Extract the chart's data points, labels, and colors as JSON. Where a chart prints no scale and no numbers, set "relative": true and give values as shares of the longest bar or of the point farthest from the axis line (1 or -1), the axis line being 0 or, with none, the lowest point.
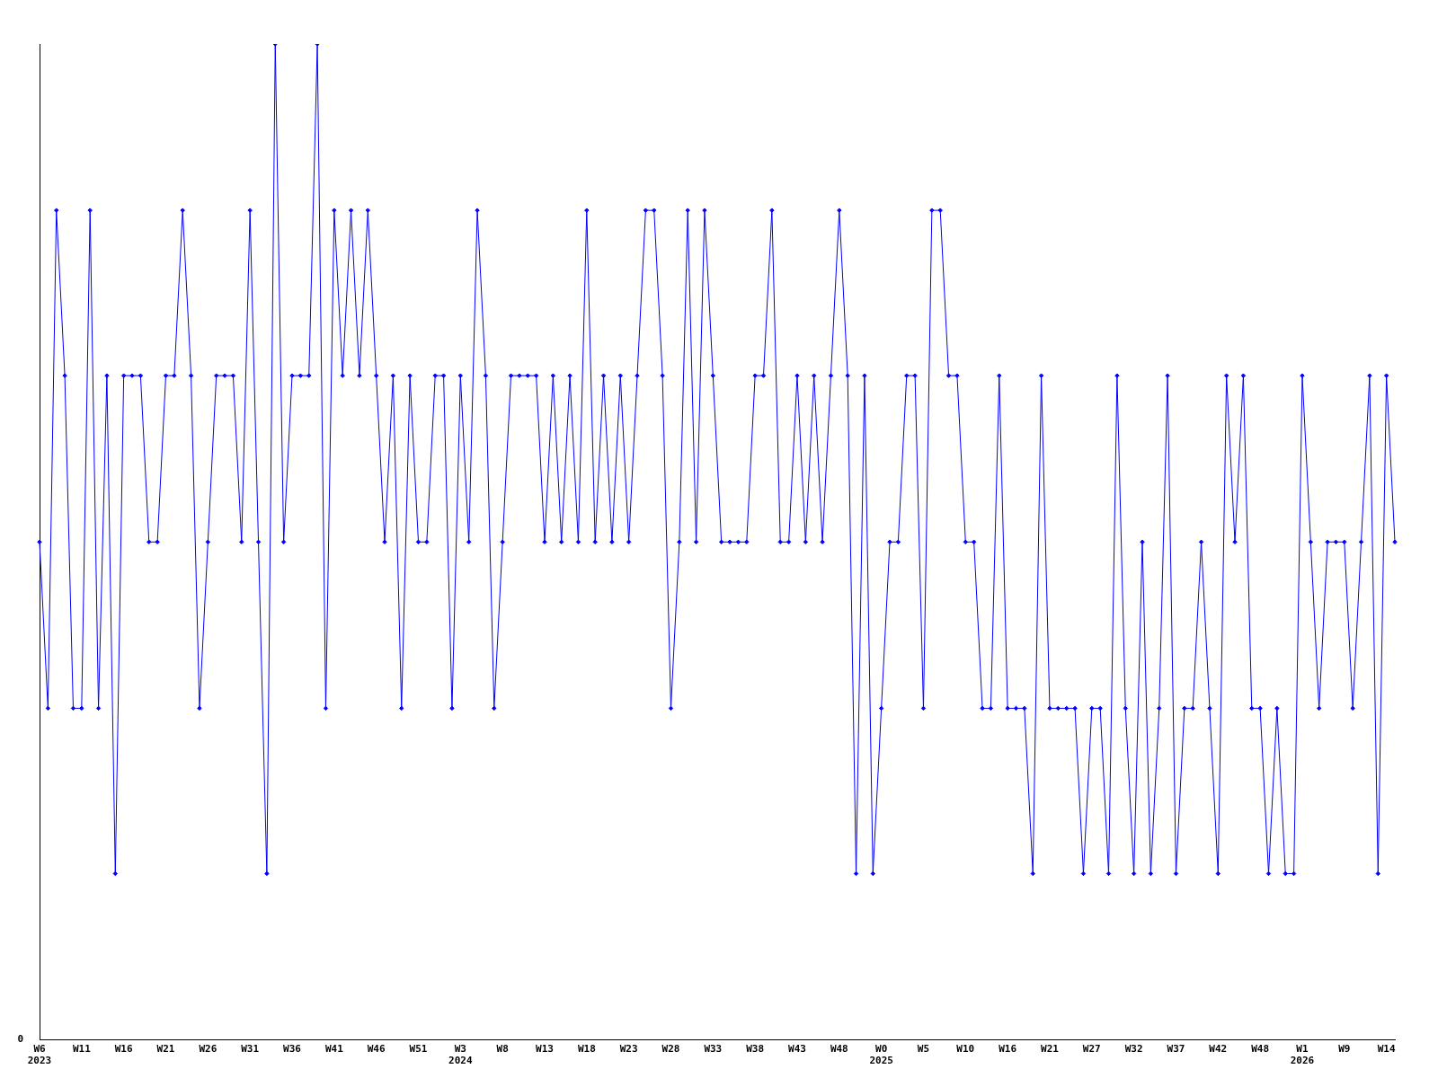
{
  "chart_data": {
    "type": "line",
    "relative": true,
    "marker": "diamond",
    "grid": false,
    "legend": false,
    "annotations": [
      "0"
    ],
    "categories": [
      "W6\n2023",
      null,
      null,
      null,
      null,
      "W11",
      null,
      null,
      null,
      null,
      "W16",
      null,
      null,
      null,
      null,
      "W21",
      null,
      null,
      null,
      null,
      "W26",
      null,
      null,
      null,
      null,
      "W31",
      null,
      null,
      null,
      null,
      "W36",
      null,
      null,
      null,
      null,
      "W41",
      null,
      null,
      null,
      null,
      "W46",
      null,
      null,
      null,
      null,
      "W51",
      null,
      null,
      null,
      null,
      "W3\n2024",
      null,
      null,
      null,
      null,
      "W8",
      null,
      null,
      null,
      null,
      "W13",
      null,
      null,
      null,
      null,
      "W18",
      null,
      null,
      null,
      null,
      "W23",
      null,
      null,
      null,
      null,
      "W28",
      null,
      null,
      null,
      null,
      "W33",
      null,
      null,
      null,
      null,
      "W38",
      null,
      null,
      null,
      null,
      "W43",
      null,
      null,
      null,
      null,
      "W48",
      null,
      null,
      null,
      null,
      "W0\n2025",
      null,
      null,
      null,
      null,
      "W5",
      null,
      null,
      null,
      null,
      "W10",
      null,
      null,
      null,
      null,
      "W16",
      null,
      null,
      null,
      null,
      "W21",
      null,
      null,
      null,
      null,
      "W27",
      null,
      null,
      null,
      null,
      "W32",
      null,
      null,
      null,
      null,
      "W37",
      null,
      null,
      null,
      null,
      "W42",
      null,
      null,
      null,
      null,
      "W48",
      null,
      null,
      null,
      null,
      "W1\n2026",
      null,
      null,
      null,
      null,
      "W9",
      null,
      null,
      null,
      null,
      "W14",
      null
    ],
    "series": [
      {
        "color": "#0000ff",
        "values": [
          0.5,
          0.333,
          0.833,
          0.667,
          0.333,
          0.333,
          0.833,
          0.333,
          0.667,
          0.167,
          0.667,
          0.667,
          0.667,
          0.5,
          0.5,
          0.667,
          0.667,
          0.833,
          0.667,
          0.333,
          0.5,
          0.667,
          0.667,
          0.667,
          0.5,
          0.833,
          0.5,
          0.167,
          1,
          0.5,
          0.667,
          0.667,
          0.667,
          1,
          0.333,
          0.833,
          0.667,
          0.833,
          0.667,
          0.833,
          0.667,
          0.5,
          0.667,
          0.333,
          0.667,
          0.5,
          0.5,
          0.667,
          0.667,
          0.333,
          0.667,
          0.5,
          0.833,
          0.667,
          0.333,
          0.5,
          0.667,
          0.667,
          0.667,
          0.667,
          0.5,
          0.667,
          0.5,
          0.667,
          0.5,
          0.833,
          0.5,
          0.667,
          0.5,
          0.667,
          0.5,
          0.667,
          0.833,
          0.833,
          0.667,
          0.333,
          0.5,
          0.833,
          0.5,
          0.833,
          0.667,
          0.5,
          0.5,
          0.5,
          0.5,
          0.667,
          0.667,
          0.833,
          0.5,
          0.5,
          0.667,
          0.5,
          0.667,
          0.5,
          0.667,
          0.833,
          0.667,
          0.167,
          0.667,
          0.167,
          0.333,
          0.5,
          0.5,
          0.667,
          0.667,
          0.333,
          0.833,
          0.833,
          0.667,
          0.667,
          0.5,
          0.5,
          0.333,
          0.333,
          0.667,
          0.333,
          0.333,
          0.333,
          0.167,
          0.667,
          0.333,
          0.333,
          0.333,
          0.333,
          0.167,
          0.333,
          0.333,
          0.167,
          0.667,
          0.333,
          0.167,
          0.5,
          0.167,
          0.333,
          0.667,
          0.167,
          0.333,
          0.333,
          0.5,
          0.333,
          0.167,
          0.667,
          0.5,
          0.667,
          0.333,
          0.333,
          0.167,
          0.333,
          0.167,
          0.167,
          0.667,
          0.5,
          0.333,
          0.5,
          0.5,
          0.5,
          0.333,
          0.5,
          0.667,
          0.167,
          0.667,
          0.5
        ]
      }
    ]
  }
}
